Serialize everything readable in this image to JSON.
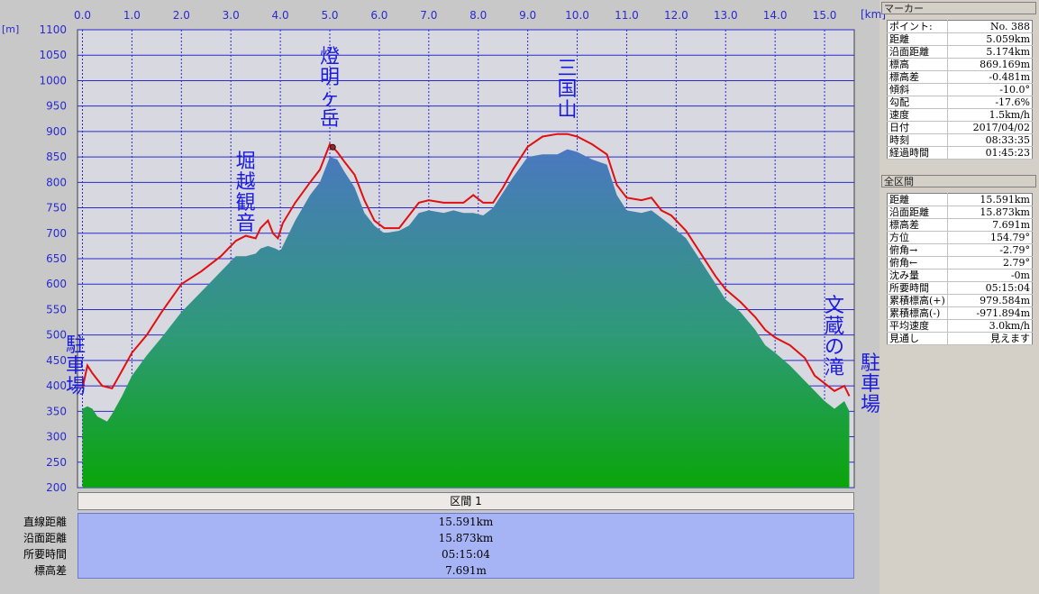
{
  "axis": {
    "x_unit": "[km]",
    "y_unit": "[m]",
    "x_ticks": [
      "0.0",
      "1.0",
      "2.0",
      "3.0",
      "4.0",
      "5.0",
      "6.0",
      "7.0",
      "8.0",
      "9.0",
      "10.0",
      "11.0",
      "12.0",
      "13.0",
      "14.0",
      "15.0"
    ],
    "y_ticks": [
      "1100",
      "1050",
      "1000",
      "950",
      "900",
      "850",
      "800",
      "750",
      "700",
      "650",
      "600",
      "550",
      "500",
      "450",
      "400",
      "350",
      "300",
      "250",
      "200"
    ]
  },
  "chart_data": {
    "type": "area",
    "xlabel": "[km]",
    "ylabel": "[m]",
    "xlim": [
      -0.1,
      15.6
    ],
    "ylim": [
      200,
      1100
    ],
    "grid": true,
    "series": [
      {
        "color": "#e01010",
        "x": [
          0.0,
          0.1,
          0.2,
          0.4,
          0.6,
          0.8,
          1.0,
          1.3,
          1.6,
          2.0,
          2.4,
          2.8,
          3.1,
          3.3,
          3.5,
          3.6,
          3.75,
          3.85,
          3.95,
          4.05,
          4.3,
          4.6,
          4.8,
          5.0,
          5.15,
          5.3,
          5.5,
          5.7,
          5.9,
          6.1,
          6.4,
          6.6,
          6.8,
          7.0,
          7.3,
          7.5,
          7.7,
          7.9,
          8.1,
          8.3,
          8.5,
          8.7,
          9.0,
          9.3,
          9.6,
          9.8,
          10.0,
          10.3,
          10.6,
          10.8,
          11.0,
          11.3,
          11.5,
          11.7,
          11.9,
          12.2,
          12.5,
          12.8,
          13.0,
          13.3,
          13.6,
          13.8,
          14.0,
          14.3,
          14.6,
          14.8,
          15.0,
          15.2,
          15.4,
          15.5
        ],
        "y": [
          395,
          440,
          425,
          400,
          395,
          430,
          465,
          500,
          545,
          600,
          625,
          655,
          685,
          695,
          690,
          710,
          725,
          700,
          690,
          720,
          760,
          800,
          825,
          875,
          860,
          840,
          815,
          765,
          725,
          710,
          710,
          735,
          760,
          765,
          760,
          760,
          760,
          775,
          760,
          760,
          790,
          825,
          870,
          890,
          895,
          895,
          890,
          875,
          855,
          795,
          770,
          765,
          770,
          745,
          735,
          705,
          660,
          615,
          590,
          565,
          535,
          510,
          495,
          480,
          455,
          420,
          405,
          390,
          400,
          380
        ]
      },
      {
        "color": "#3a7fc0",
        "x": [
          0.0,
          0.1,
          0.2,
          0.3,
          0.5,
          0.6,
          0.8,
          1.0,
          1.3,
          1.6,
          2.0,
          2.4,
          2.8,
          3.1,
          3.3,
          3.5,
          3.6,
          3.75,
          3.9,
          4.0,
          4.3,
          4.6,
          4.8,
          5.0,
          5.15,
          5.3,
          5.5,
          5.7,
          5.9,
          6.1,
          6.4,
          6.6,
          6.8,
          7.0,
          7.3,
          7.5,
          7.7,
          7.9,
          8.1,
          8.3,
          8.5,
          8.7,
          9.0,
          9.3,
          9.6,
          9.8,
          10.0,
          10.3,
          10.6,
          10.8,
          11.0,
          11.3,
          11.5,
          11.7,
          11.9,
          12.2,
          12.5,
          12.8,
          13.0,
          13.3,
          13.6,
          13.8,
          14.0,
          14.3,
          14.6,
          14.8,
          15.0,
          15.2,
          15.4,
          15.5
        ],
        "y": [
          355,
          360,
          355,
          340,
          330,
          345,
          380,
          420,
          460,
          495,
          545,
          585,
          625,
          655,
          655,
          660,
          670,
          675,
          670,
          665,
          725,
          775,
          800,
          850,
          845,
          820,
          790,
          740,
          715,
          700,
          705,
          715,
          740,
          745,
          740,
          745,
          740,
          740,
          735,
          750,
          780,
          810,
          850,
          855,
          855,
          865,
          860,
          845,
          835,
          775,
          745,
          740,
          745,
          730,
          715,
          690,
          645,
          600,
          570,
          545,
          510,
          480,
          465,
          440,
          410,
          390,
          370,
          355,
          370,
          350
        ]
      }
    ],
    "annotations": [
      {
        "text": "駐車場",
        "x": 0.0
      },
      {
        "text": "堀越観音",
        "x": 3.3
      },
      {
        "text": "燈明ヶ岳",
        "x": 5.0
      },
      {
        "text": "三国山",
        "x": 9.8
      },
      {
        "text": "文蔵の滝",
        "x": 15.2
      },
      {
        "text": "駐車場",
        "x": 15.6
      }
    ]
  },
  "marker_panel": {
    "title": "マーカー",
    "rows": [
      {
        "label": "ポイント:",
        "value": "No. 388"
      },
      {
        "label": "距離",
        "value": "5.059km"
      },
      {
        "label": "沿面距離",
        "value": "5.174km"
      },
      {
        "label": "標高",
        "value": "869.169m"
      },
      {
        "label": "標高差",
        "value": "-0.481m"
      },
      {
        "label": "傾斜",
        "value": "-10.0°"
      },
      {
        "label": "勾配",
        "value": "-17.6%"
      },
      {
        "label": "速度",
        "value": "1.5km/h"
      },
      {
        "label": "日付",
        "value": "2017/04/02"
      },
      {
        "label": "時刻",
        "value": "08:33:35"
      },
      {
        "label": "経過時間",
        "value": "01:45:23"
      }
    ]
  },
  "total_panel": {
    "title": "全区間",
    "rows": [
      {
        "label": "距離",
        "value": "15.591km"
      },
      {
        "label": "沿面距離",
        "value": "15.873km"
      },
      {
        "label": "標高差",
        "value": "7.691m"
      },
      {
        "label": "方位",
        "value": "154.79°"
      },
      {
        "label": "俯角→",
        "value": "-2.79°"
      },
      {
        "label": "俯角←",
        "value": "2.79°"
      },
      {
        "label": "沈み量",
        "value": "-0m"
      },
      {
        "label": "所要時間",
        "value": "05:15:04"
      },
      {
        "label": "累積標高(+)",
        "value": "979.584m"
      },
      {
        "label": "累積標高(-)",
        "value": "-971.894m"
      },
      {
        "label": "平均速度",
        "value": "3.0km/h"
      },
      {
        "label": "見通し",
        "value": "見えます"
      }
    ]
  },
  "segment": {
    "header": "区間 1",
    "rows": [
      {
        "label": "直線距離",
        "value": "15.591km"
      },
      {
        "label": "沿面距離",
        "value": "15.873km"
      },
      {
        "label": "所要時間",
        "value": "05:15:04"
      },
      {
        "label": "標高差",
        "value": "7.691m"
      }
    ]
  },
  "colors": {
    "plot_bg": "#d8d8e0",
    "grid": "#2a2ad0",
    "profile_line": "#e01010",
    "area_top": "#4a80c8",
    "area_bottom": "#10a010",
    "label_text": "#1a1ae0",
    "segment_bg": "#a6b4f6"
  }
}
